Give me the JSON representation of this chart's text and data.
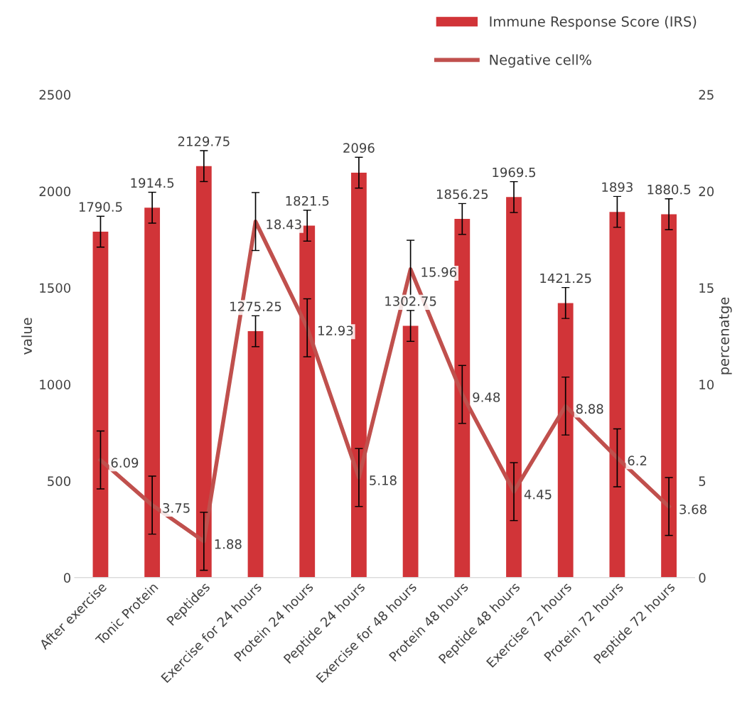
{
  "chart_data": {
    "type": "bar",
    "categories": [
      "After exercise",
      "Tonic Protein",
      "Peptides",
      "Exercise for 24 hours",
      "Protein 24 hours",
      "Peptide 24 hours",
      "Exercise for 48 hours",
      "Protein 48 hours",
      "Peptide 48 hours",
      "Exercise 72 hours",
      "Protein 72 hours",
      "Peptide 72 hours"
    ],
    "series": [
      {
        "name": "Immune Response Score (IRS)",
        "color": "#d13438",
        "values": [
          1790.5,
          1914.5,
          2129.75,
          1275.25,
          1821.5,
          2096,
          1302.75,
          1856.25,
          1969.5,
          1421.25,
          1893,
          1880.5
        ],
        "errors": [
          80,
          80,
          80,
          80,
          80,
          80,
          80,
          80,
          80,
          80,
          80,
          80
        ]
      },
      {
        "name": "Negative cell%",
        "type": "line",
        "axis": "y2",
        "color": "#c0504d",
        "values": [
          6.09,
          3.75,
          1.88,
          18.43,
          12.93,
          5.18,
          15.96,
          9.48,
          4.45,
          8.88,
          6.2,
          3.68
        ],
        "errors": [
          1.5,
          1.5,
          1.5,
          1.5,
          1.5,
          1.5,
          1.5,
          1.5,
          1.5,
          1.5,
          1.5,
          1.5
        ]
      }
    ],
    "ylabel": "value",
    "y2label": "percenatge",
    "ylim": [
      0,
      2500
    ],
    "yticks": [
      0,
      500,
      1000,
      1500,
      2000,
      2500
    ],
    "y2lim": [
      0,
      25
    ],
    "y2ticks": [
      0,
      5,
      10,
      15,
      20,
      25
    ],
    "data_labels": true,
    "grid": false,
    "legend": "top right",
    "marker": "none",
    "line_style": "solid"
  }
}
